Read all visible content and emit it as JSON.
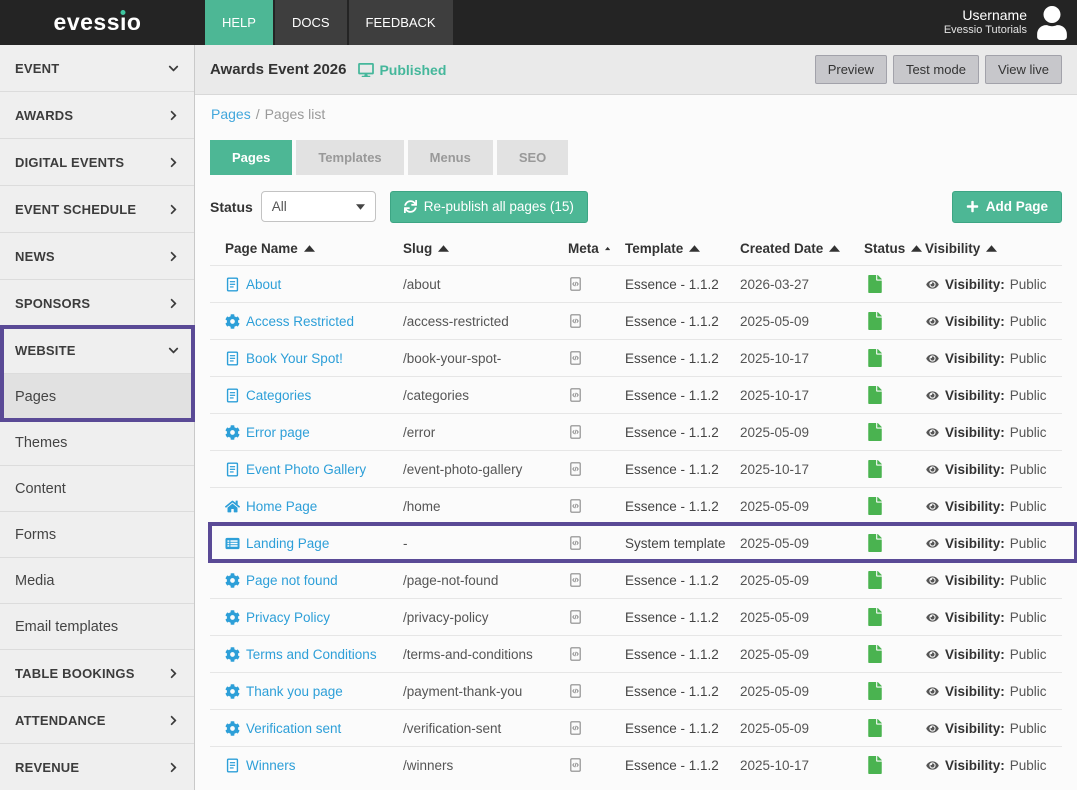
{
  "colors": {
    "accent": "#4db795",
    "published_teal": "#45b79b",
    "link_blue": "#2d9fd8",
    "annotation_purple": "#5a4a96",
    "status_green": "#4ab350"
  },
  "topbar": {
    "brand": {
      "text": "evessio",
      "pre": "evess",
      "i_glyph": "ı",
      "post": "o"
    },
    "nav": [
      {
        "label": "HELP",
        "active": true
      },
      {
        "label": "DOCS",
        "active": false
      },
      {
        "label": "FEEDBACK",
        "active": false
      }
    ],
    "username": "Username",
    "account": "Evessio Tutorials"
  },
  "sidebar": {
    "items": [
      {
        "label": "EVENT",
        "kind": "section",
        "chevron": "down"
      },
      {
        "label": "AWARDS",
        "kind": "section",
        "chevron": "right"
      },
      {
        "label": "DIGITAL EVENTS",
        "kind": "section",
        "chevron": "right"
      },
      {
        "label": "EVENT SCHEDULE",
        "kind": "section",
        "chevron": "right"
      },
      {
        "label": "NEWS",
        "kind": "section",
        "chevron": "right"
      },
      {
        "label": "SPONSORS",
        "kind": "section",
        "chevron": "right"
      },
      {
        "label": "WEBSITE",
        "kind": "section",
        "chevron": "down"
      },
      {
        "label": "Pages",
        "kind": "sub",
        "selected": true
      },
      {
        "label": "Themes",
        "kind": "sub"
      },
      {
        "label": "Content",
        "kind": "sub"
      },
      {
        "label": "Forms",
        "kind": "sub"
      },
      {
        "label": "Media",
        "kind": "sub"
      },
      {
        "label": "Email templates",
        "kind": "sub"
      },
      {
        "label": "TABLE BOOKINGS",
        "kind": "section",
        "chevron": "right"
      },
      {
        "label": "ATTENDANCE",
        "kind": "section",
        "chevron": "right"
      },
      {
        "label": "REVENUE",
        "kind": "section",
        "chevron": "right"
      }
    ]
  },
  "header": {
    "event_title": "Awards Event 2026",
    "status_label": "Published",
    "actions": [
      "Preview",
      "Test mode",
      "View live"
    ]
  },
  "breadcrumb": {
    "link": "Pages",
    "separator": "/",
    "current": "Pages list"
  },
  "tabs": [
    {
      "label": "Pages",
      "active": true
    },
    {
      "label": "Templates",
      "active": false
    },
    {
      "label": "Menus",
      "active": false
    },
    {
      "label": "SEO",
      "active": false
    }
  ],
  "filters": {
    "status_label": "Status",
    "status_value": "All",
    "republish_label": "Re-publish all pages (15)",
    "add_page_label": "Add Page"
  },
  "table": {
    "columns": [
      {
        "label": "Page Name",
        "sorted": true
      },
      {
        "label": "Slug",
        "sorted": false
      },
      {
        "label": "Meta",
        "sorted": false
      },
      {
        "label": "Template",
        "sorted": false
      },
      {
        "label": "Created Date",
        "sorted": false
      },
      {
        "label": "Status",
        "sorted": false
      },
      {
        "label": "Visibility",
        "sorted": false
      }
    ],
    "visibility_prefix": "Visibility:",
    "rows": [
      {
        "name": "About",
        "icon": "file-text",
        "slug": "/about",
        "template": "Essence - 1.1.2",
        "created": "2026-03-27",
        "status": "published",
        "visibility": "Public",
        "annotated": false
      },
      {
        "name": "Access Restricted",
        "icon": "gear",
        "slug": "/access-restricted",
        "template": "Essence - 1.1.2",
        "created": "2025-05-09",
        "status": "published",
        "visibility": "Public",
        "annotated": false
      },
      {
        "name": "Book Your Spot!",
        "icon": "file-text",
        "slug": "/book-your-spot-",
        "template": "Essence - 1.1.2",
        "created": "2025-10-17",
        "status": "published",
        "visibility": "Public",
        "annotated": false
      },
      {
        "name": "Categories",
        "icon": "file-text",
        "slug": "/categories",
        "template": "Essence - 1.1.2",
        "created": "2025-10-17",
        "status": "published",
        "visibility": "Public",
        "annotated": false
      },
      {
        "name": "Error page",
        "icon": "gear",
        "slug": "/error",
        "template": "Essence - 1.1.2",
        "created": "2025-05-09",
        "status": "published",
        "visibility": "Public",
        "annotated": false
      },
      {
        "name": "Event Photo Gallery",
        "icon": "file-text",
        "slug": "/event-photo-gallery",
        "template": "Essence - 1.1.2",
        "created": "2025-10-17",
        "status": "published",
        "visibility": "Public",
        "annotated": false
      },
      {
        "name": "Home Page",
        "icon": "home",
        "slug": "/home",
        "template": "Essence - 1.1.2",
        "created": "2025-05-09",
        "status": "published",
        "visibility": "Public",
        "annotated": false
      },
      {
        "name": "Landing Page",
        "icon": "list-alt",
        "slug": "-",
        "template": "System template",
        "created": "2025-05-09",
        "status": "published",
        "visibility": "Public",
        "annotated": true
      },
      {
        "name": "Page not found",
        "icon": "gear",
        "slug": "/page-not-found",
        "template": "Essence - 1.1.2",
        "created": "2025-05-09",
        "status": "published",
        "visibility": "Public",
        "annotated": false
      },
      {
        "name": "Privacy Policy",
        "icon": "gear",
        "slug": "/privacy-policy",
        "template": "Essence - 1.1.2",
        "created": "2025-05-09",
        "status": "published",
        "visibility": "Public",
        "annotated": false
      },
      {
        "name": "Terms and Conditions",
        "icon": "gear",
        "slug": "/terms-and-conditions",
        "template": "Essence - 1.1.2",
        "created": "2025-05-09",
        "status": "published",
        "visibility": "Public",
        "annotated": false
      },
      {
        "name": "Thank you page",
        "icon": "gear",
        "slug": "/payment-thank-you",
        "template": "Essence - 1.1.2",
        "created": "2025-05-09",
        "status": "published",
        "visibility": "Public",
        "annotated": false
      },
      {
        "name": "Verification sent",
        "icon": "gear",
        "slug": "/verification-sent",
        "template": "Essence - 1.1.2",
        "created": "2025-05-09",
        "status": "published",
        "visibility": "Public",
        "annotated": false
      },
      {
        "name": "Winners",
        "icon": "file-text",
        "slug": "/winners",
        "template": "Essence - 1.1.2",
        "created": "2025-10-17",
        "status": "published",
        "visibility": "Public",
        "annotated": false
      }
    ]
  }
}
